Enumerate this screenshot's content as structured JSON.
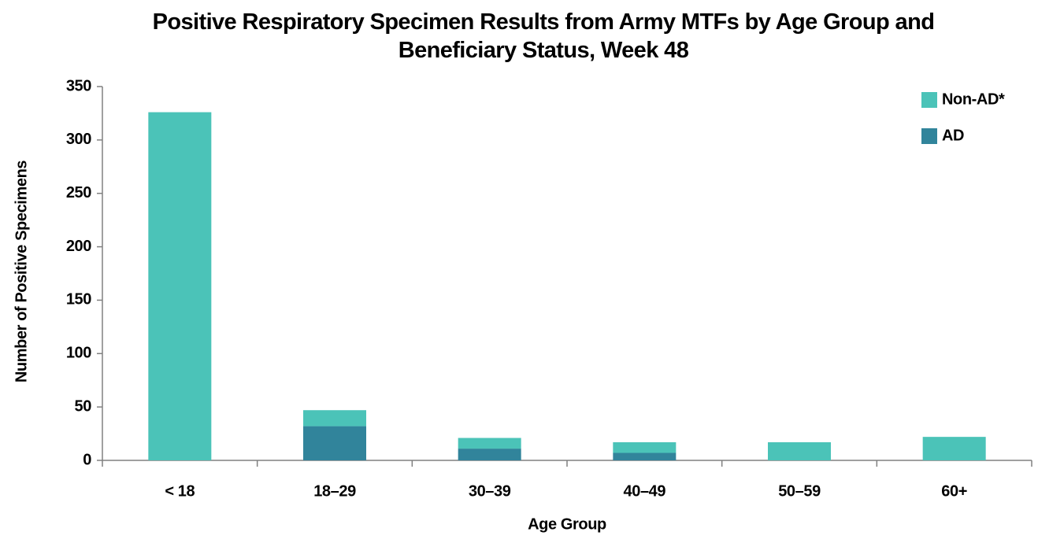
{
  "chart_data": {
    "type": "stacked_bar",
    "title": "Positive Respiratory Specimen Results from Army MTFs by Age Group and Beneficiary Status, Week 48",
    "x_label": "Age Group",
    "y_label": "Number of Positive Specimens",
    "categories": [
      "< 18",
      "18–29",
      "30–39",
      "40–49",
      "50–59",
      "60+"
    ],
    "series": [
      {
        "name": "AD",
        "color": "#31849b",
        "values": [
          0,
          32,
          11,
          7,
          0,
          0
        ]
      },
      {
        "name": "Non-AD*",
        "color": "#4bc3b8",
        "values": [
          326,
          15,
          10,
          10,
          17,
          22
        ]
      }
    ],
    "ylim": [
      0,
      350
    ],
    "yticks": [
      0,
      50,
      100,
      150,
      200,
      250,
      300,
      350
    ],
    "legend": "upper right"
  }
}
